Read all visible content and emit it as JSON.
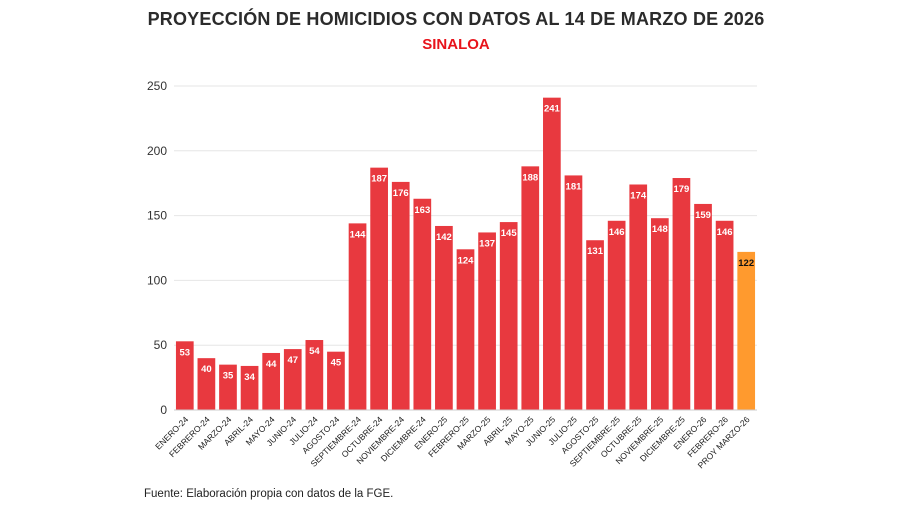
{
  "chart_title": "PROYECCIÓN DE HOMICIDIOS CON DATOS AL 14 DE MARZO DE 2026",
  "chart_subtitle": "SINALOA",
  "source_note": "Fuente: Elaboración propia con datos de la FGE.",
  "colors": {
    "bar": "#e8393f",
    "projection_bar": "#ff9a2e",
    "title": "#2b2b2b",
    "subtitle": "#e8131b",
    "grid": "#e6e6e6"
  },
  "chart_data": {
    "type": "bar",
    "title": "PROYECCIÓN DE HOMICIDIOS CON DATOS AL 14 DE MARZO DE 2026",
    "subtitle": "SINALOA",
    "categories": [
      "ENERO-24",
      "FEBRERO-24",
      "MARZO-24",
      "ABRIL-24",
      "MAYO-24",
      "JUNIO-24",
      "JULIO-24",
      "AGOSTO-24",
      "SEPTIEMBRE-24",
      "OCTUBRE-24",
      "NOVIEMBRE-24",
      "DICIEMBRE-24",
      "ENERO-25",
      "FEBRERO-25",
      "MARZO-25",
      "ABRIL-25",
      "MAYO-25",
      "JUNIO-25",
      "JULIO-25",
      "AGOSTO-25",
      "SEPTIEMBRE-25",
      "OCTUBRE-25",
      "NOVIEMBRE-25",
      "DICIEMBRE-25",
      "ENERO-26",
      "FEBRERO-26",
      "PROY MARZO-26"
    ],
    "values": [
      53,
      40,
      35,
      34,
      44,
      47,
      54,
      45,
      144,
      187,
      176,
      163,
      142,
      124,
      137,
      145,
      188,
      241,
      181,
      131,
      146,
      174,
      148,
      179,
      159,
      146,
      122
    ],
    "highlight_category": "PROY MARZO-26",
    "ylim": [
      0,
      250
    ],
    "yticks": [
      0,
      50,
      100,
      150,
      200,
      250
    ],
    "grid": true,
    "legend": "none",
    "xlabel": "",
    "ylabel": ""
  }
}
